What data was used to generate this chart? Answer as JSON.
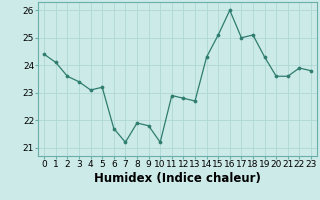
{
  "x": [
    0,
    1,
    2,
    3,
    4,
    5,
    6,
    7,
    8,
    9,
    10,
    11,
    12,
    13,
    14,
    15,
    16,
    17,
    18,
    19,
    20,
    21,
    22,
    23
  ],
  "y": [
    24.4,
    24.1,
    23.6,
    23.4,
    23.1,
    23.2,
    21.7,
    21.2,
    21.9,
    21.8,
    21.2,
    22.9,
    22.8,
    22.7,
    24.3,
    25.1,
    26.0,
    25.0,
    25.1,
    24.3,
    23.6,
    23.6,
    23.9,
    23.8
  ],
  "line_color": "#2e7d6e",
  "marker": "o",
  "marker_size": 2.2,
  "bg_color": "#cceae8",
  "grid_color": "#b0d8d5",
  "xlabel": "Humidex (Indice chaleur)",
  "ylim": [
    20.7,
    26.3
  ],
  "xlim": [
    -0.5,
    23.5
  ],
  "yticks": [
    21,
    22,
    23,
    24,
    25,
    26
  ],
  "xticks": [
    0,
    1,
    2,
    3,
    4,
    5,
    6,
    7,
    8,
    9,
    10,
    11,
    12,
    13,
    14,
    15,
    16,
    17,
    18,
    19,
    20,
    21,
    22,
    23
  ],
  "tick_fontsize": 6.5,
  "xlabel_fontsize": 8.5,
  "line_width": 0.9,
  "spine_color": "#6aafaa",
  "tick_color": "#6aafaa"
}
